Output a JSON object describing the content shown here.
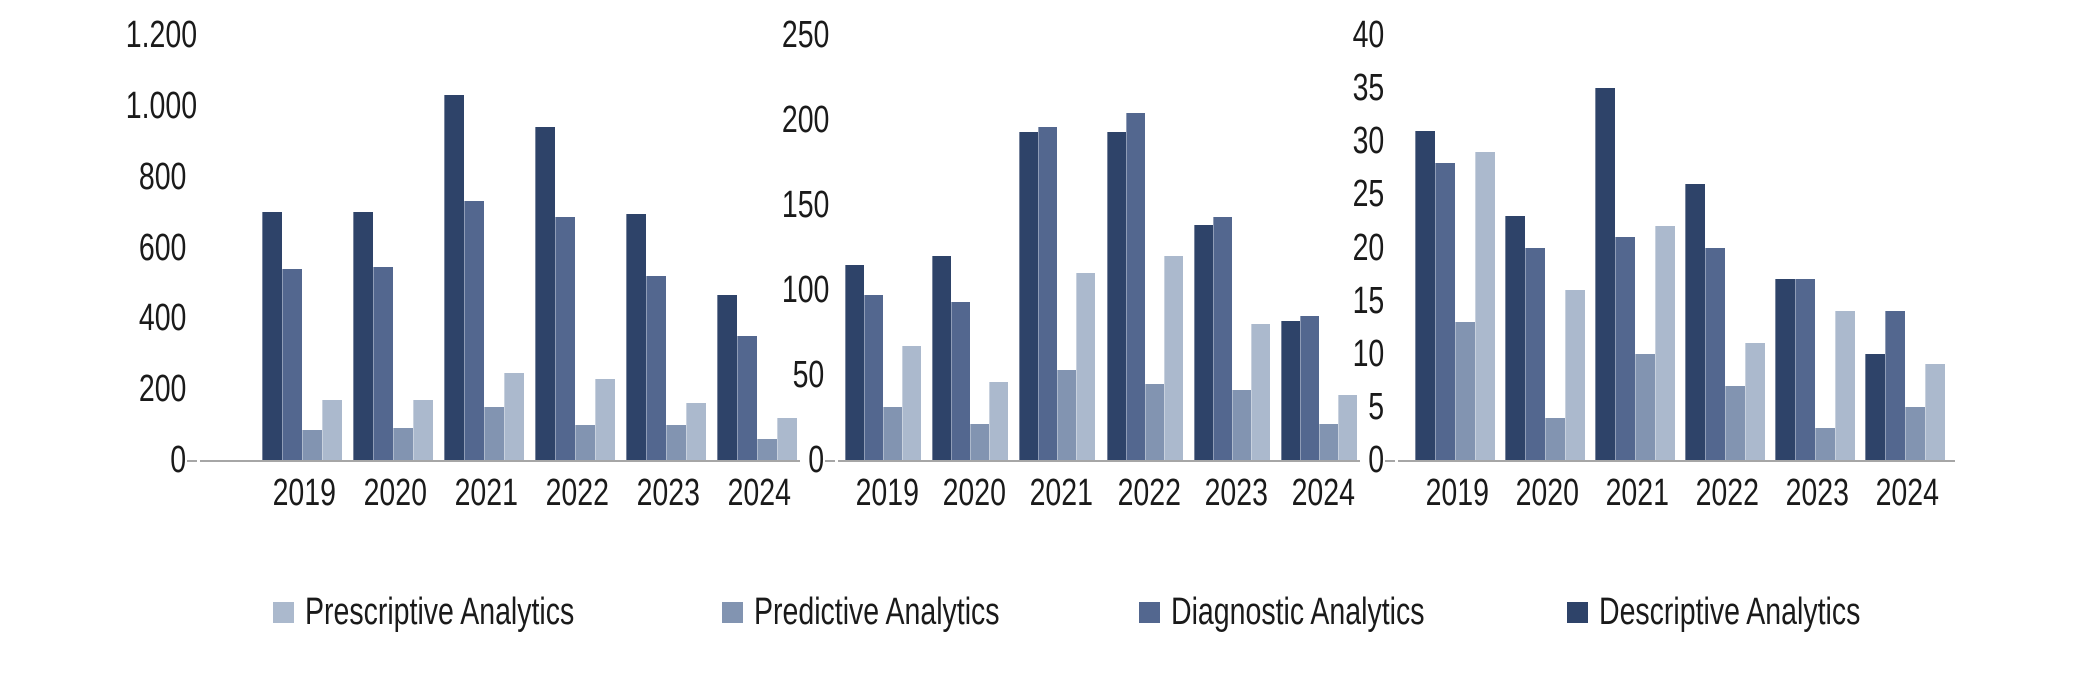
{
  "legend": {
    "position": "bottom",
    "items": [
      {
        "label": "Prescriptive Analytics",
        "color": "#abb9cd"
      },
      {
        "label": "Predictive Analytics",
        "color": "#8294b1"
      },
      {
        "label": "Diagnostic Analytics",
        "color": "#53678f"
      },
      {
        "label": "Descriptive Analytics",
        "color": "#2e4369"
      }
    ]
  },
  "chart_data": [
    {
      "type": "bar",
      "categories": [
        "2019",
        "2020",
        "2021",
        "2022",
        "2023",
        "2024"
      ],
      "y_ticks": [
        "1.200",
        "1.000",
        "800",
        "600",
        "400",
        "200",
        "0"
      ],
      "ylim": [
        0,
        1200
      ],
      "grid": false,
      "legend_position": "bottom-shared",
      "series": [
        {
          "name": "Descriptive Analytics",
          "color": "#2e4369",
          "values": [
            700,
            700,
            1030,
            940,
            695,
            465
          ]
        },
        {
          "name": "Diagnostic Analytics",
          "color": "#53678f",
          "values": [
            540,
            545,
            730,
            685,
            520,
            350
          ]
        },
        {
          "name": "Predictive Analytics",
          "color": "#8294b1",
          "values": [
            85,
            90,
            150,
            100,
            100,
            60
          ]
        },
        {
          "name": "Prescriptive Analytics",
          "color": "#abb9cd",
          "values": [
            170,
            170,
            245,
            230,
            160,
            120
          ]
        }
      ]
    },
    {
      "type": "bar",
      "categories": [
        "2019",
        "2020",
        "2021",
        "2022",
        "2023",
        "2024"
      ],
      "y_ticks": [
        "250",
        "200",
        "150",
        "100",
        "50",
        "0"
      ],
      "ylim": [
        0,
        250
      ],
      "grid": false,
      "legend_position": "bottom-shared",
      "series": [
        {
          "name": "Descriptive Analytics",
          "color": "#2e4369",
          "values": [
            115,
            120,
            193,
            193,
            138,
            82
          ]
        },
        {
          "name": "Diagnostic Analytics",
          "color": "#53678f",
          "values": [
            97,
            93,
            196,
            204,
            143,
            85
          ]
        },
        {
          "name": "Predictive Analytics",
          "color": "#8294b1",
          "values": [
            31,
            21,
            53,
            45,
            41,
            21
          ]
        },
        {
          "name": "Prescriptive Analytics",
          "color": "#abb9cd",
          "values": [
            67,
            46,
            110,
            120,
            80,
            38
          ]
        }
      ]
    },
    {
      "type": "bar",
      "categories": [
        "2019",
        "2020",
        "2021",
        "2022",
        "2023",
        "2024"
      ],
      "y_ticks": [
        "40",
        "35",
        "30",
        "25",
        "20",
        "15",
        "10",
        "5",
        "0"
      ],
      "ylim": [
        0,
        40
      ],
      "grid": false,
      "legend_position": "bottom-shared",
      "series": [
        {
          "name": "Descriptive Analytics",
          "color": "#2e4369",
          "values": [
            31,
            23,
            35,
            26,
            17,
            10
          ]
        },
        {
          "name": "Diagnostic Analytics",
          "color": "#53678f",
          "values": [
            28,
            20,
            21,
            20,
            17,
            14
          ]
        },
        {
          "name": "Predictive Analytics",
          "color": "#8294b1",
          "values": [
            13,
            4,
            10,
            7,
            3,
            5
          ]
        },
        {
          "name": "Prescriptive Analytics",
          "color": "#abb9cd",
          "values": [
            29,
            16,
            22,
            11,
            14,
            9
          ]
        }
      ]
    }
  ]
}
